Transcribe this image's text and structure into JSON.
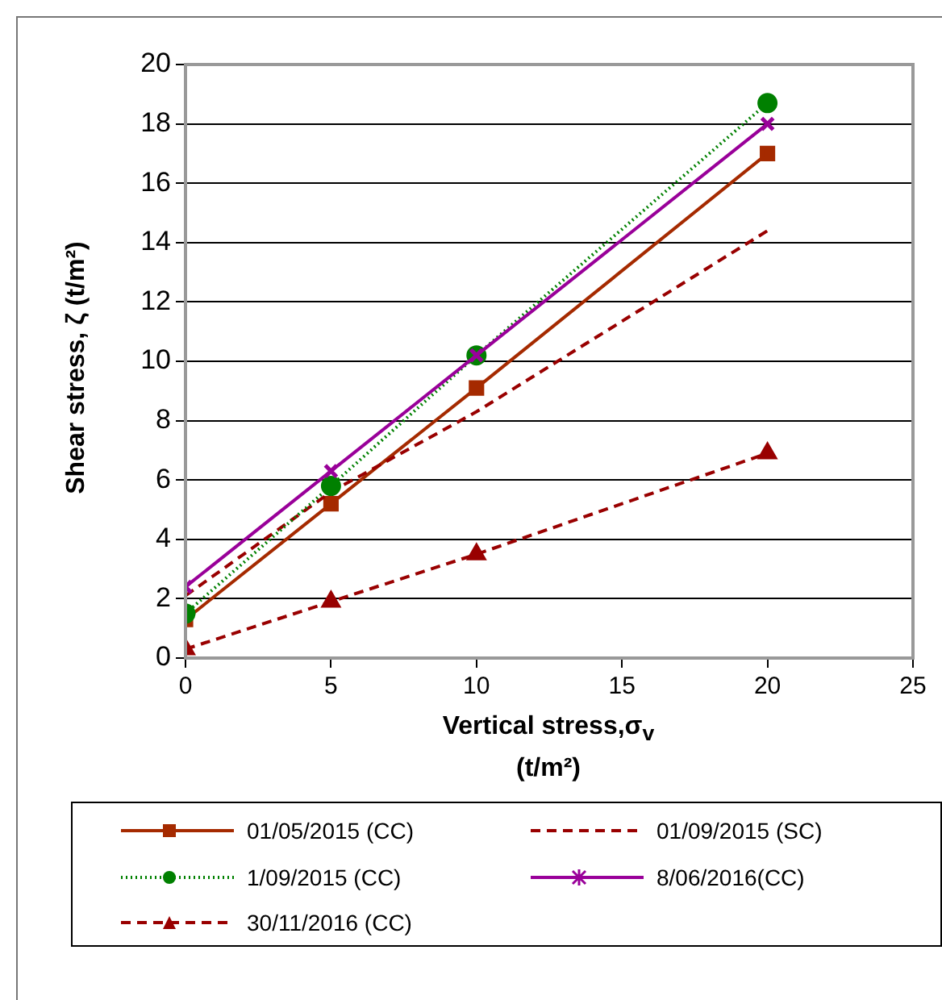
{
  "chart_data": {
    "type": "line",
    "xlabel": "Vertical stress,σ$_{v}$\n(t/m²)",
    "ylabel": "Shear stress, ζ (t/m²)",
    "x": [
      0,
      5,
      10,
      20
    ],
    "xlim": [
      0,
      25
    ],
    "xticks": [
      0,
      5,
      10,
      15,
      20,
      25
    ],
    "ylim": [
      0,
      20
    ],
    "yticks": [
      0,
      2,
      4,
      6,
      8,
      10,
      12,
      14,
      16,
      18,
      20
    ],
    "grid": "y",
    "legend": "bottom",
    "series": [
      {
        "name": "01/05/2015 (CC)",
        "color": "#a52a00",
        "values": [
          1.3,
          5.2,
          9.1,
          17.0
        ],
        "marker": "square",
        "line_style": "solid"
      },
      {
        "name": "01/09/2015 (SC)",
        "color": "#990000",
        "values": [
          2.1,
          5.6,
          8.3,
          14.4
        ],
        "marker": "none",
        "line_style": "dashed"
      },
      {
        "name": "1/09/2015 (CC)",
        "color": "#008000",
        "values": [
          1.5,
          5.8,
          10.2,
          18.7
        ],
        "marker": "circle",
        "line_style": "dotted"
      },
      {
        "name": "8/06/2016(CC)",
        "color": "#990099",
        "values": [
          2.4,
          6.3,
          10.2,
          18.0
        ],
        "marker": "cross",
        "line_style": "solid"
      },
      {
        "name": "30/11/2016 (CC)",
        "color": "#990000",
        "values": [
          0.3,
          1.9,
          3.5,
          6.9
        ],
        "marker": "triangle",
        "line_style": "dashed"
      }
    ]
  }
}
